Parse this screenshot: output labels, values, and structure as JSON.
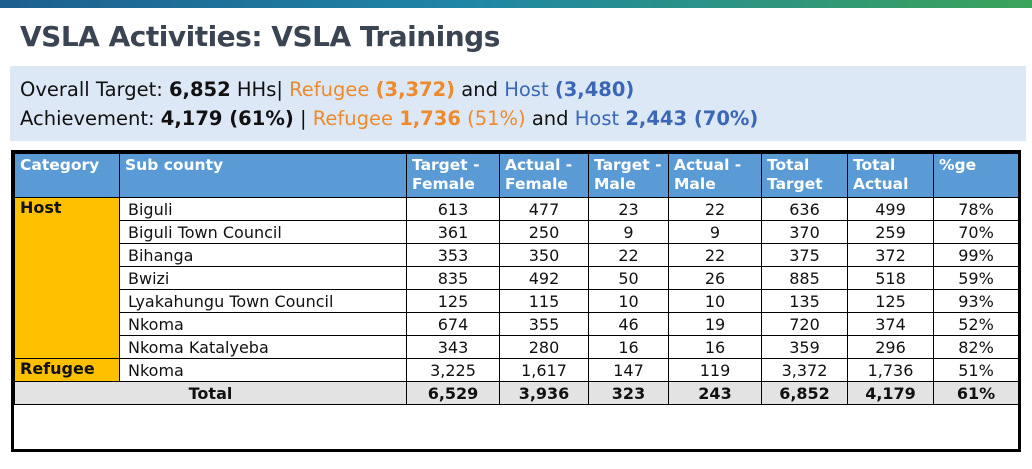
{
  "title": "VSLA Activities: VSLA Trainings",
  "summary": {
    "line1": {
      "label": "Overall Target: ",
      "total": "6,852",
      "unit": " HHs| ",
      "refugee_label": "Refugee ",
      "refugee_value": "(3,372)",
      "joiner": " and ",
      "host_label": "Host ",
      "host_value": "(3,480)"
    },
    "line2": {
      "label": "Achievement: ",
      "total": "4,179 (61%)",
      "sep": " | ",
      "refugee_label": "Refugee ",
      "refugee_value": "1,736",
      "refugee_pct": " (51%)",
      "joiner": " and ",
      "host_label": "Host ",
      "host_value": "2,443",
      "host_pct": " (70%)"
    }
  },
  "table": {
    "headers": [
      "Category",
      "Sub county",
      "Target - Female",
      "Actual - Female",
      "Target - Male",
      "Actual - Male",
      "Total Target",
      "Total Actual",
      "%ge"
    ],
    "categories": {
      "host": "Host",
      "refugee": "Refugee"
    },
    "host_rows": [
      [
        "Biguli",
        "613",
        "477",
        "23",
        "22",
        "636",
        "499",
        "78%"
      ],
      [
        "Biguli Town Council",
        "361",
        "250",
        "9",
        "9",
        "370",
        "259",
        "70%"
      ],
      [
        "Bihanga",
        "353",
        "350",
        "22",
        "22",
        "375",
        "372",
        "99%"
      ],
      [
        "Bwizi",
        "835",
        "492",
        "50",
        "26",
        "885",
        "518",
        "59%"
      ],
      [
        "Lyakahungu Town Council",
        "125",
        "115",
        "10",
        "10",
        "135",
        "125",
        "93%"
      ],
      [
        "Nkoma",
        "674",
        "355",
        "46",
        "19",
        "720",
        "374",
        "52%"
      ],
      [
        "Nkoma Katalyeba",
        "343",
        "280",
        "16",
        "16",
        "359",
        "296",
        "82%"
      ]
    ],
    "refugee_rows": [
      [
        "Nkoma",
        "3,225",
        "1,617",
        "147",
        "119",
        "3,372",
        "1,736",
        "51%"
      ]
    ],
    "total": {
      "label": "Total",
      "values": [
        "6,529",
        "3,936",
        "323",
        "243",
        "6,852",
        "4,179",
        "61%"
      ]
    }
  },
  "colors": {
    "header_bg": "#5b9bd5",
    "category_bg": "#ffc000",
    "total_bg": "#e3e3e3",
    "summary_bg": "#dce8f5",
    "refugee_text": "#ee8a2c",
    "host_text": "#3b67b8",
    "title_text": "#3a4452"
  }
}
